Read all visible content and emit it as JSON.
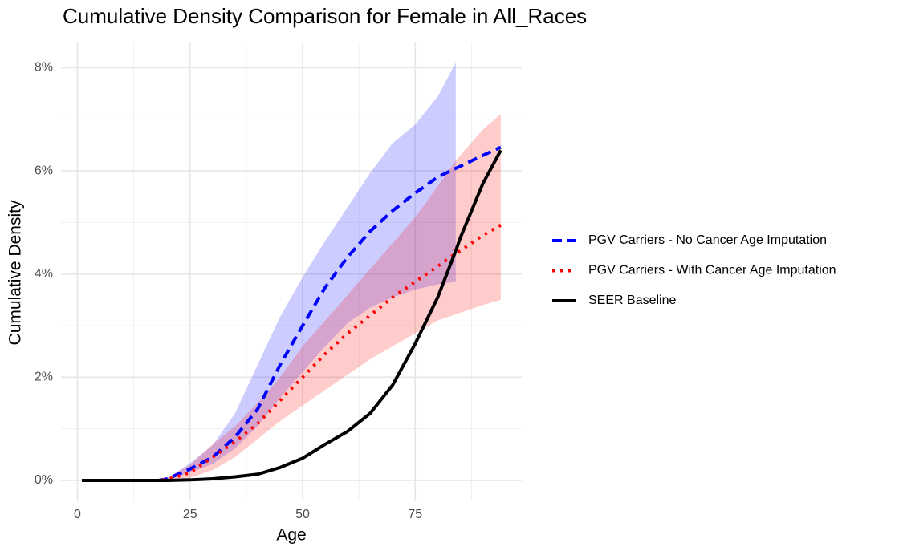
{
  "chart_data": {
    "type": "line",
    "title": "Cumulative Density Comparison for Female in All_Races",
    "x_label": "Age",
    "y_label": "Cumulative Density",
    "x": [
      1,
      5,
      10,
      15,
      18,
      20,
      25,
      30,
      35,
      40,
      45,
      50,
      55,
      60,
      65,
      70,
      75,
      80,
      84,
      85,
      90,
      94
    ],
    "series": [
      {
        "name": "PGV Carriers - No Cancer Age Imputation",
        "color": "#0000ff",
        "dash": "dashed",
        "values": [
          0,
          0,
          0,
          0,
          0,
          0.03,
          0.22,
          0.45,
          0.84,
          1.38,
          2.24,
          3.0,
          3.74,
          4.33,
          4.83,
          5.23,
          5.57,
          5.88,
          6.05,
          6.09,
          6.3,
          6.46
        ],
        "band_lower": [
          null,
          null,
          null,
          null,
          0,
          0.02,
          0.15,
          0.32,
          0.62,
          1.05,
          1.6,
          2.1,
          2.6,
          3.05,
          3.35,
          3.55,
          3.7,
          3.8,
          3.85,
          null,
          null,
          null
        ],
        "band_upper": [
          null,
          null,
          null,
          null,
          0,
          0.05,
          0.33,
          0.68,
          1.3,
          2.24,
          3.17,
          3.94,
          4.64,
          5.3,
          5.96,
          6.54,
          6.9,
          7.44,
          8.1,
          null,
          null,
          null
        ]
      },
      {
        "name": "PGV Carriers - With Cancer Age Imputation",
        "color": "#ff0000",
        "dash": "dotted",
        "values": [
          0,
          0,
          0,
          0,
          0,
          0.02,
          0.15,
          0.45,
          0.75,
          1.1,
          1.55,
          2.0,
          2.45,
          2.85,
          3.2,
          3.55,
          3.85,
          4.15,
          4.4,
          4.45,
          4.75,
          4.95
        ],
        "band_lower": [
          null,
          null,
          null,
          null,
          0,
          0.01,
          0.05,
          0.2,
          0.45,
          0.8,
          1.15,
          1.45,
          1.75,
          2.05,
          2.35,
          2.6,
          2.85,
          3.1,
          3.22,
          3.25,
          3.4,
          3.5
        ],
        "band_upper": [
          null,
          null,
          null,
          null,
          0,
          0.05,
          0.3,
          0.7,
          1.05,
          1.5,
          2.0,
          2.6,
          3.1,
          3.6,
          4.1,
          4.6,
          5.1,
          5.7,
          6.2,
          6.3,
          6.8,
          7.1
        ]
      },
      {
        "name": "SEER Baseline",
        "color": "#000000",
        "dash": "solid",
        "values": [
          0,
          0,
          0,
          0,
          0,
          0,
          0.01,
          0.03,
          0.07,
          0.12,
          0.25,
          0.43,
          0.7,
          0.95,
          1.3,
          1.85,
          2.65,
          3.55,
          4.45,
          4.7,
          5.75,
          6.4
        ]
      }
    ],
    "band_opacity": 0.2,
    "xlim": [
      -3.65,
      98.65
    ],
    "xticks": [
      0,
      25,
      50,
      75
    ],
    "x_minor_ticks": [
      12.5,
      37.5,
      62.5,
      87.5
    ],
    "ylim": [
      -0.405,
      8.505
    ],
    "yticks": [
      {
        "value": 0,
        "label": "0%"
      },
      {
        "value": 2,
        "label": "2%"
      },
      {
        "value": 4,
        "label": "4%"
      },
      {
        "value": 6,
        "label": "6%"
      },
      {
        "value": 8,
        "label": "8%"
      }
    ],
    "y_minor_ticks": [
      1,
      3,
      5,
      7
    ],
    "grid": true,
    "legend_position": "right"
  }
}
